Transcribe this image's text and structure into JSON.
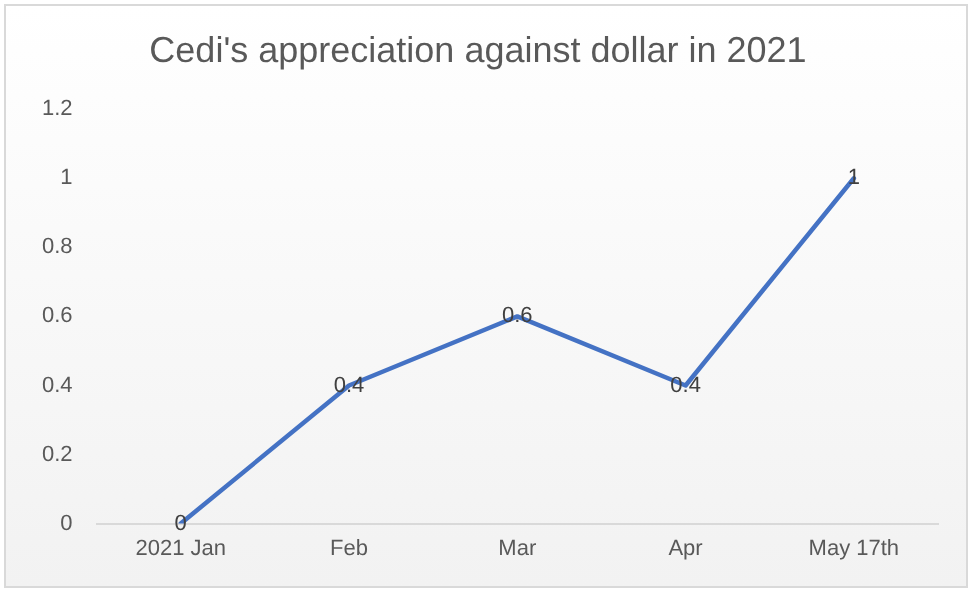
{
  "chart_data": {
    "type": "line",
    "title": "Cedi's appreciation against dollar in 2021",
    "categories": [
      "2021 Jan",
      "Feb",
      "Mar",
      "Apr",
      "May 17th"
    ],
    "series": [
      {
        "color": "#4472c4",
        "values": [
          0,
          0.4,
          0.6,
          0.4,
          1
        ]
      }
    ],
    "ylim": [
      0,
      1.2
    ],
    "yticks": [
      0,
      0.2,
      0.4,
      0.6,
      0.8,
      1,
      1.2
    ],
    "grid": false,
    "legend": false,
    "marker": "none",
    "data_labels": true
  }
}
